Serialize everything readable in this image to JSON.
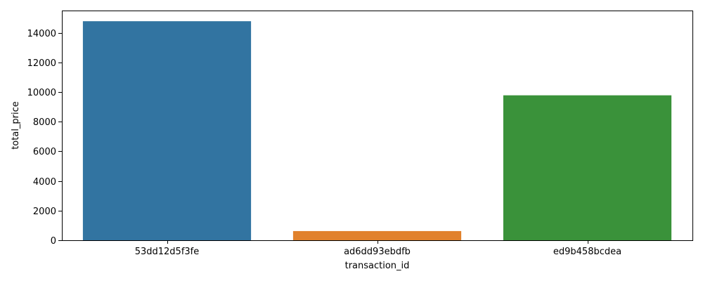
{
  "chart_data": {
    "type": "bar",
    "title": "",
    "xlabel": "transaction_id",
    "ylabel": "total_price",
    "categories": [
      "53dd12d5f3fe",
      "ad6dd93ebdfb",
      "ed9b458bcdea"
    ],
    "values": [
      14780,
      620,
      9780
    ],
    "colors": [
      "#3274a1",
      "#e1812c",
      "#3a923a"
    ],
    "ylim": [
      0,
      15500
    ],
    "yticks": [
      0,
      2000,
      4000,
      6000,
      8000,
      10000,
      12000,
      14000
    ],
    "grid": false,
    "legend": "none"
  }
}
